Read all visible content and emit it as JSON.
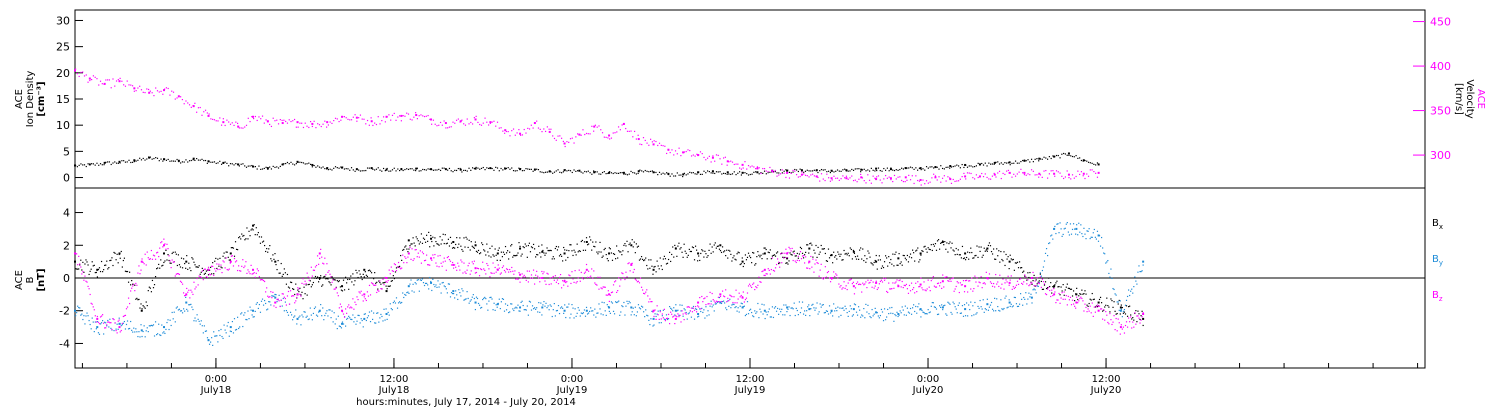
{
  "chart_data": [
    {
      "type": "scatter",
      "title": "",
      "ylabel": [
        "ACE",
        "Ion Density",
        "[cm⁻³]"
      ],
      "y2label": [
        "ACE",
        "Velocity",
        "[km/s]"
      ],
      "ylim": [
        -2,
        32
      ],
      "yticks": [
        0,
        5,
        10,
        15,
        20,
        25,
        30
      ],
      "y2lim": [
        263,
        463
      ],
      "y2ticks": [
        300,
        350,
        400,
        450
      ],
      "series": [
        {
          "axis": "left",
          "color": "#000000",
          "x": [
            0,
            1,
            2,
            3,
            4,
            5,
            6,
            7,
            8,
            9,
            10,
            11,
            12,
            13,
            14,
            15,
            16,
            17,
            18,
            19,
            20,
            21,
            22,
            23,
            24,
            25,
            26,
            27,
            28,
            29,
            30,
            31,
            32,
            33,
            34,
            35,
            36,
            37,
            38,
            39,
            40,
            41,
            42,
            43,
            44,
            45,
            46,
            47,
            48,
            49,
            50,
            51,
            52,
            53,
            54,
            55,
            56,
            57,
            58,
            59,
            60,
            61,
            62,
            63,
            64,
            65,
            66,
            67,
            68,
            69
          ],
          "values": [
            2.3,
            2.5,
            2.8,
            3.0,
            3.3,
            3.8,
            3.5,
            3.2,
            3.6,
            3.1,
            2.8,
            2.5,
            2.1,
            1.8,
            2.5,
            3.0,
            2.4,
            1.8,
            1.9,
            1.6,
            1.8,
            1.5,
            1.6,
            1.7,
            1.6,
            1.6,
            1.5,
            1.7,
            1.8,
            1.7,
            1.6,
            1.5,
            1.2,
            1.4,
            1.3,
            1.0,
            0.9,
            0.9,
            1.2,
            1.0,
            0.7,
            0.6,
            1.0,
            1.2,
            1.0,
            0.9,
            1.0,
            1.3,
            1.3,
            1.4,
            1.4,
            1.3,
            1.4,
            1.5,
            1.7,
            1.6,
            1.8,
            1.8,
            2.0,
            2.2,
            2.4,
            2.5,
            2.8,
            2.9,
            3.2,
            3.6,
            4.0,
            4.6,
            3.3,
            2.5
          ]
        },
        {
          "axis": "right",
          "color": "#ff00ff",
          "x": [
            0,
            1,
            2,
            3,
            4,
            5,
            6,
            7,
            8,
            9,
            10,
            11,
            12,
            13,
            14,
            15,
            16,
            17,
            18,
            19,
            20,
            21,
            22,
            23,
            24,
            25,
            26,
            27,
            28,
            29,
            30,
            31,
            32,
            33,
            34,
            35,
            36,
            37,
            38,
            39,
            40,
            41,
            42,
            43,
            44,
            45,
            46,
            47,
            48,
            49,
            50,
            51,
            52,
            53,
            54,
            55,
            56,
            57,
            58,
            59,
            60,
            61,
            62,
            63,
            64,
            65,
            66,
            67,
            68,
            69
          ],
          "values": [
            395,
            386,
            380,
            383,
            375,
            370,
            373,
            366,
            355,
            344,
            337,
            332,
            343,
            338,
            336,
            337,
            335,
            337,
            343,
            342,
            338,
            343,
            344,
            345,
            340,
            336,
            338,
            340,
            337,
            328,
            324,
            336,
            326,
            313,
            323,
            332,
            322,
            335,
            318,
            312,
            306,
            303,
            300,
            297,
            293,
            289,
            285,
            282,
            280,
            278,
            276,
            274,
            274,
            275,
            273,
            274,
            275,
            272,
            275,
            273,
            276,
            276,
            278,
            280,
            280,
            279,
            279,
            278,
            279,
            280
          ]
        }
      ],
      "annotations": []
    },
    {
      "type": "scatter",
      "title": "",
      "ylabel": [
        "ACE",
        "B",
        "[nT]"
      ],
      "ylim": [
        -5.5,
        5.5
      ],
      "yticks": [
        -4,
        -2,
        0,
        2,
        4
      ],
      "xlabel": "hours:minutes, July 17, 2014 - July 20, 2014",
      "x_ticks": [
        {
          "hour": 24,
          "time": "0:00",
          "date": "July18"
        },
        {
          "hour": 36,
          "time": "12:00",
          "date": "July18"
        },
        {
          "hour": 48,
          "time": "0:00",
          "date": "July19"
        },
        {
          "hour": 60,
          "time": "12:00",
          "date": "July19"
        },
        {
          "hour": 72,
          "time": "0:00",
          "date": "July20"
        },
        {
          "hour": 84,
          "time": "12:00",
          "date": "July20"
        }
      ],
      "xlim": [
        14.5,
        105.5
      ],
      "legend": [
        {
          "name": "B",
          "sub": "x",
          "color": "#000000"
        },
        {
          "name": "B",
          "sub": "y",
          "color": "#1e8cd8"
        },
        {
          "name": "B",
          "sub": "z",
          "color": "#ff00ff"
        }
      ],
      "legend_position": "right",
      "series": [
        {
          "name": "Bx",
          "color": "#000000",
          "x": [
            14.5,
            16,
            17.5,
            19,
            20.5,
            22,
            23.5,
            25,
            26.5,
            28,
            29.5,
            31,
            32.5,
            34,
            35.5,
            37,
            38.5,
            40,
            41.5,
            43,
            44.5,
            46,
            47.5,
            49,
            50.5,
            52,
            53.5,
            55,
            56.5,
            58,
            59.5,
            61,
            62.5,
            64,
            65.5,
            67,
            68.5,
            70,
            71.5,
            73,
            74.5,
            76,
            77.5,
            79,
            80.5,
            82,
            83.5,
            85,
            86.5
          ],
          "values": [
            1.0,
            0.5,
            1.5,
            -2.0,
            1.5,
            1.0,
            0.5,
            1.5,
            3.2,
            1.0,
            -1.0,
            0.0,
            -0.5,
            0.5,
            -0.8,
            2.3,
            2.4,
            2.2,
            2.0,
            1.5,
            1.8,
            1.6,
            1.5,
            2.2,
            1.5,
            2.0,
            0.5,
            1.8,
            1.5,
            2.0,
            1.0,
            1.5,
            1.2,
            1.8,
            1.4,
            1.6,
            1.0,
            1.2,
            1.5,
            2.2,
            1.5,
            1.8,
            1.0,
            0.0,
            -0.5,
            -1.0,
            -1.5,
            -1.8,
            -2.5
          ]
        },
        {
          "name": "By",
          "color": "#1e8cd8",
          "x": [
            14.5,
            16,
            17.5,
            19,
            20.5,
            22,
            23.5,
            25,
            26.5,
            28,
            29.5,
            31,
            32.5,
            34,
            35.5,
            37,
            38.5,
            40,
            41.5,
            43,
            44.5,
            46,
            47.5,
            49,
            50.5,
            52,
            53.5,
            55,
            56.5,
            58,
            59.5,
            61,
            62.5,
            64,
            65.5,
            67,
            68.5,
            70,
            71.5,
            73,
            74.5,
            76,
            77.5,
            79,
            80.5,
            82,
            83.5,
            85,
            86.5
          ],
          "values": [
            -2.0,
            -3.0,
            -2.8,
            -3.2,
            -3.0,
            -1.5,
            -3.8,
            -3.0,
            -2.0,
            -1.2,
            -2.5,
            -2.0,
            -2.8,
            -2.5,
            -2.2,
            -0.5,
            -0.3,
            -0.8,
            -1.5,
            -1.6,
            -1.8,
            -1.8,
            -2.0,
            -2.0,
            -1.8,
            -1.8,
            -2.5,
            -2.0,
            -2.2,
            -1.5,
            -1.8,
            -2.0,
            -1.8,
            -1.9,
            -2.0,
            -1.9,
            -2.1,
            -2.2,
            -1.9,
            -1.8,
            -1.9,
            -1.6,
            -1.5,
            -1.2,
            3.0,
            3.0,
            2.6,
            -2.0,
            1.0
          ]
        },
        {
          "name": "Bz",
          "color": "#ff00ff",
          "x": [
            14.5,
            16,
            17.5,
            19,
            20.5,
            22,
            23.5,
            25,
            26.5,
            28,
            29.5,
            31,
            32.5,
            34,
            35.5,
            37,
            38.5,
            40,
            41.5,
            43,
            44.5,
            46,
            47.5,
            49,
            50.5,
            52,
            53.5,
            55,
            56.5,
            58,
            59.5,
            61,
            62.5,
            64,
            65.5,
            67,
            68.5,
            70,
            71.5,
            73,
            74.5,
            76,
            77.5,
            79,
            80.5,
            82,
            83.5,
            85,
            86.5
          ],
          "values": [
            1.5,
            -2.5,
            -3.0,
            1.0,
            2.0,
            -1.0,
            0.5,
            1.0,
            0.5,
            -1.5,
            -1.0,
            1.5,
            -2.0,
            -1.0,
            0.0,
            1.5,
            1.2,
            0.8,
            0.6,
            0.5,
            0.2,
            0.0,
            -0.2,
            0.5,
            -1.0,
            0.8,
            -2.0,
            -2.5,
            -1.5,
            -1.0,
            -1.2,
            0.5,
            1.5,
            1.0,
            0.0,
            -0.5,
            -0.3,
            -0.5,
            -0.4,
            -0.2,
            -0.5,
            0.0,
            -0.3,
            0.0,
            -1.0,
            -1.5,
            -2.0,
            -3.0,
            -2.2
          ]
        }
      ],
      "annotations": []
    }
  ]
}
